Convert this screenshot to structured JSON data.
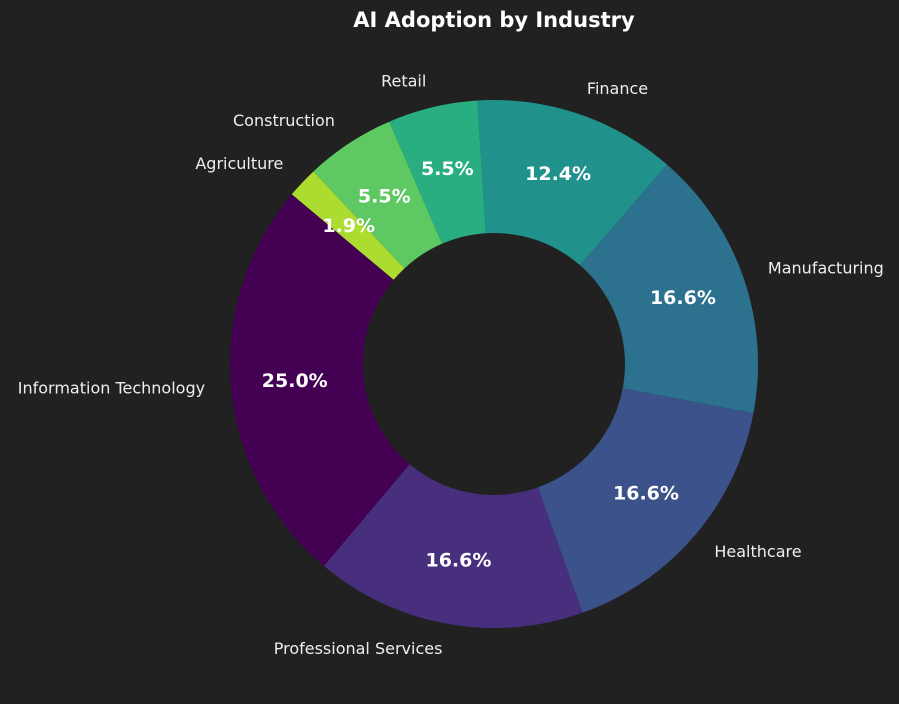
{
  "chart_data": {
    "type": "pie",
    "style": "donut",
    "title": "AI Adoption by Industry",
    "start_angle_deg": 140,
    "direction": "counterclockwise",
    "categories": [
      "Information Technology",
      "Professional Services",
      "Healthcare",
      "Manufacturing",
      "Finance",
      "Retail",
      "Construction",
      "Agriculture"
    ],
    "values": [
      25.0,
      16.6,
      16.6,
      16.6,
      12.4,
      5.5,
      5.5,
      1.9
    ],
    "value_labels": [
      "25.0%",
      "16.6%",
      "16.6%",
      "16.6%",
      "12.4%",
      "5.5%",
      "5.5%",
      "1.9%"
    ],
    "colors": [
      "#440154",
      "#472f7d",
      "#3b528b",
      "#2c728e",
      "#21918c",
      "#28ae80",
      "#5ec962",
      "#addc30"
    ],
    "background": "#212121"
  }
}
